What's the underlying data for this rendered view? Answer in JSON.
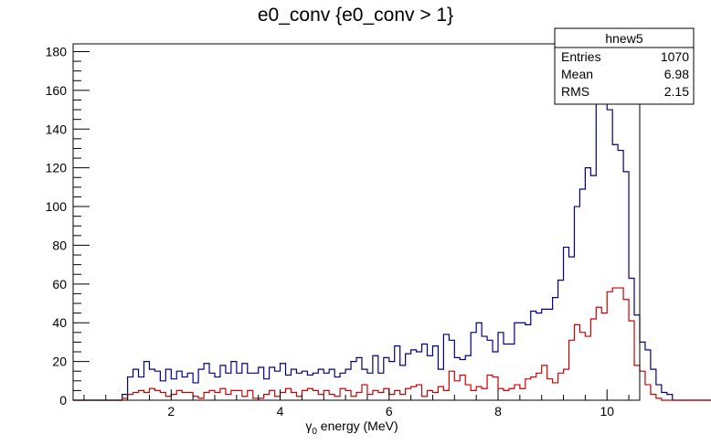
{
  "chart_data": {
    "type": "histogram",
    "title": "e0_conv {e0_conv > 1}",
    "xlabel_symbol": "γ",
    "xlabel_sub": "0",
    "xlabel_rest": " energy (MeV)",
    "ylabel": "",
    "xlim": [
      0.2,
      10.6
    ],
    "ylim": [
      0,
      184
    ],
    "x_ticks": [
      2,
      4,
      6,
      8,
      10
    ],
    "y_ticks": [
      0,
      20,
      40,
      60,
      80,
      100,
      120,
      140,
      160,
      180
    ],
    "bin_start": 0.2,
    "bin_width": 0.1,
    "series": [
      {
        "color": "#000080",
        "values": [
          0,
          0,
          0,
          0,
          0,
          0,
          0,
          0,
          0,
          3,
          12,
          16,
          12,
          20,
          16,
          15,
          10,
          16,
          11,
          15,
          12,
          14,
          9,
          16,
          19,
          14,
          12,
          18,
          14,
          20,
          14,
          19,
          14,
          14,
          17,
          11,
          17,
          15,
          19,
          13,
          16,
          14,
          15,
          13,
          14,
          16,
          14,
          16,
          12,
          14,
          16,
          20,
          22,
          16,
          14,
          23,
          14,
          22,
          20,
          28,
          18,
          24,
          26,
          25,
          29,
          23,
          28,
          16,
          34,
          31,
          22,
          21,
          23,
          35,
          40,
          33,
          31,
          25,
          35,
          29,
          29,
          40,
          40,
          39,
          46,
          45,
          47,
          47,
          53,
          62,
          79,
          74,
          100,
          109,
          120,
          116,
          155,
          175,
          150,
          132,
          129,
          118,
          63,
          44,
          30,
          26,
          16,
          8,
          4,
          3,
          0,
          0,
          0,
          0,
          0,
          0,
          0,
          0,
          0
        ]
      },
      {
        "color": "#cc0000",
        "values": [
          0,
          0,
          0,
          0,
          0,
          0,
          0,
          0,
          0,
          1,
          3,
          4,
          5,
          4,
          6,
          5,
          4,
          2,
          3,
          5,
          4,
          4,
          2,
          1,
          4,
          5,
          4,
          6,
          3,
          5,
          5,
          2,
          5,
          1,
          1,
          3,
          5,
          2,
          4,
          6,
          4,
          2,
          5,
          6,
          5,
          3,
          5,
          3,
          2,
          6,
          5,
          2,
          4,
          8,
          3,
          5,
          4,
          6,
          3,
          5,
          3,
          6,
          7,
          8,
          2,
          5,
          4,
          7,
          5,
          15,
          10,
          13,
          8,
          5,
          7,
          6,
          13,
          12,
          6,
          5,
          6,
          8,
          6,
          11,
          12,
          14,
          18,
          11,
          9,
          14,
          16,
          31,
          39,
          35,
          33,
          42,
          48,
          45,
          56,
          58,
          58,
          52,
          41,
          18,
          15,
          8,
          3,
          1,
          0,
          0,
          0,
          0,
          0,
          0,
          0,
          0,
          0,
          0,
          0
        ]
      }
    ],
    "stats_box": {
      "name": "hnew5",
      "rows": [
        {
          "label": "Entries",
          "value": "1070"
        },
        {
          "label": "Mean",
          "value": "6.98"
        },
        {
          "label": "RMS",
          "value": "2.15"
        }
      ]
    }
  }
}
